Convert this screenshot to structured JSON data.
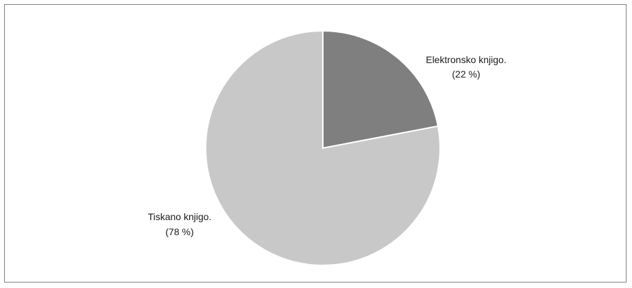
{
  "chart_data": {
    "type": "pie",
    "title": "",
    "slices": [
      {
        "label": "Elektronsko knjigo.",
        "value_label": "(22 %)",
        "value": 22,
        "color": "#7f7f7f"
      },
      {
        "label": "Tiskano knjigo.",
        "value_label": "(78 %)",
        "value": 78,
        "color": "#c8c8c8"
      }
    ],
    "legend": "none",
    "start_angle": "12 o'clock",
    "direction": "clockwise"
  }
}
